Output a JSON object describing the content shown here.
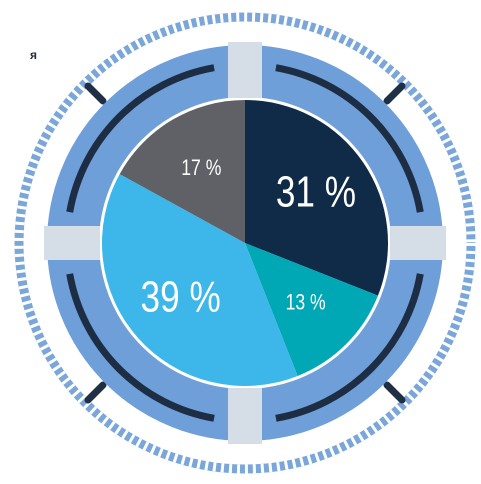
{
  "chart_data": {
    "type": "pie",
    "categories": [
      null,
      null,
      null,
      null
    ],
    "values": [
      31,
      13,
      39,
      17
    ],
    "value_labels": [
      "31 %",
      "13 %",
      "39 %",
      "17 %"
    ],
    "colors": [
      "#0f2b48",
      "#00a8b6",
      "#3db6ea",
      "#606166"
    ],
    "annotations": [
      "я"
    ]
  }
}
